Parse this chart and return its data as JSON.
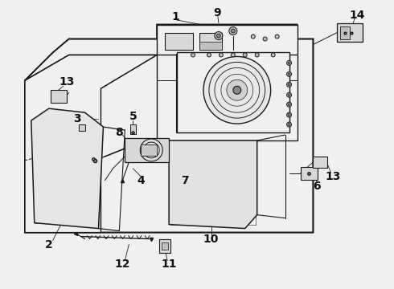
{
  "bg_color": "#f0f0f0",
  "line_color": "#1a1a1a",
  "text_color": "#111111",
  "fig_width": 4.9,
  "fig_height": 3.6,
  "dpi": 100,
  "label_fontsize": 9,
  "label_fontweight": "bold"
}
